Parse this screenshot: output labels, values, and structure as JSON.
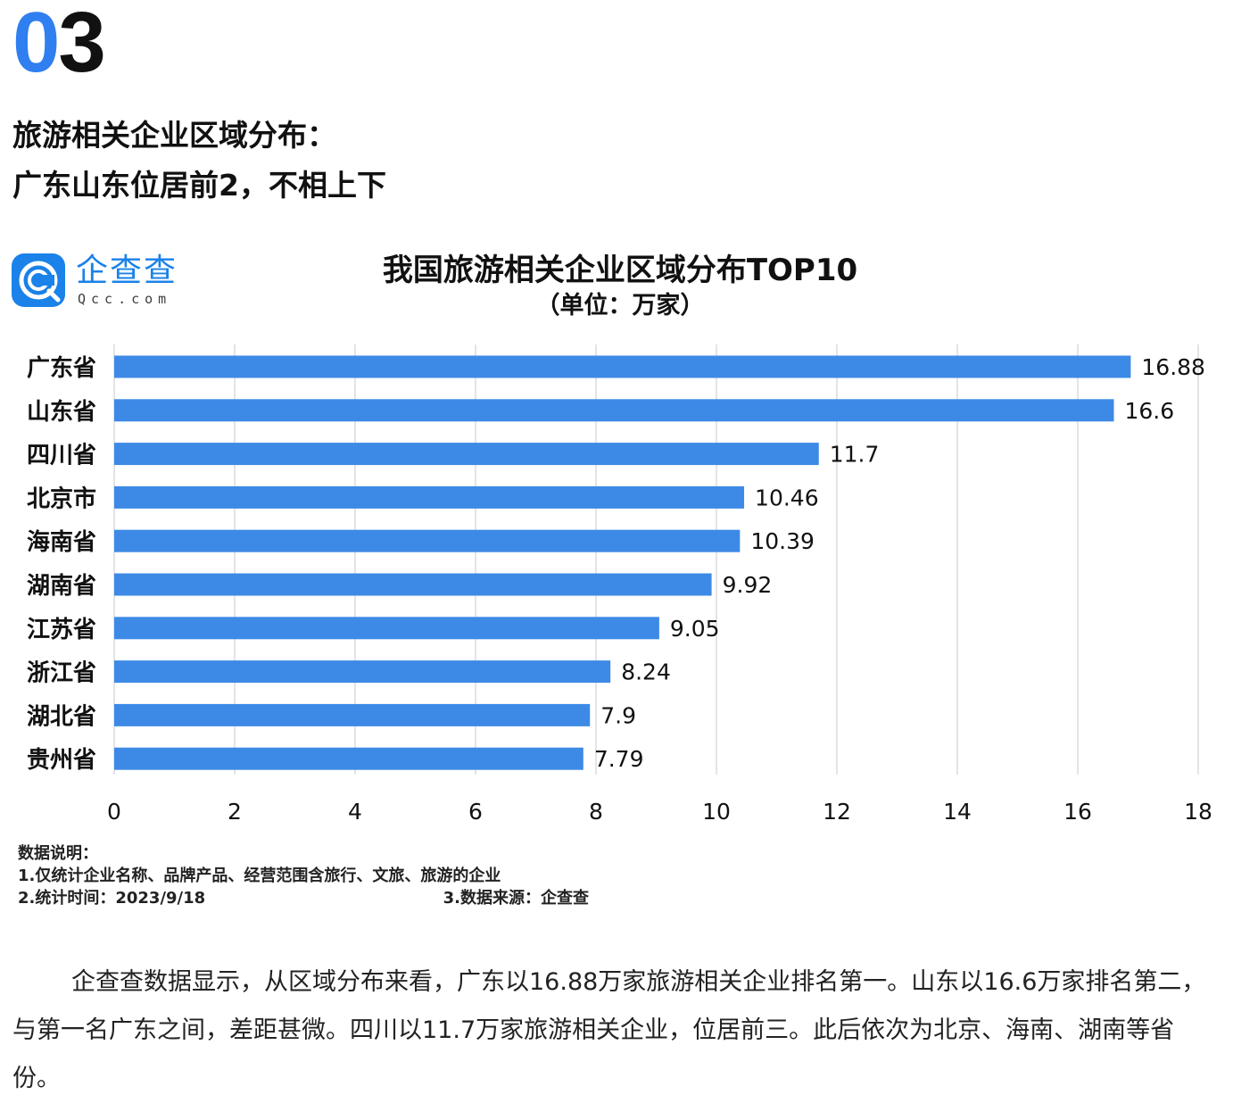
{
  "section_number": {
    "first": "0",
    "second": "3"
  },
  "heading": {
    "line1": "旅游相关企业区域分布：",
    "line2": "广东山东位居前2，不相上下"
  },
  "logo": {
    "cn": "企查查",
    "en": "Qcc.com",
    "brand_color": "#1a82e8"
  },
  "chart_data": {
    "type": "bar",
    "orientation": "horizontal",
    "title": "我国旅游相关企业区域分布TOP10",
    "subtitle": "（单位：万家）",
    "categories": [
      "广东省",
      "山东省",
      "四川省",
      "北京市",
      "海南省",
      "湖南省",
      "江苏省",
      "浙江省",
      "湖北省",
      "贵州省"
    ],
    "values": [
      16.88,
      16.6,
      11.7,
      10.46,
      10.39,
      9.92,
      9.05,
      8.24,
      7.9,
      7.79
    ],
    "value_labels": [
      "16.88",
      "16.6",
      "11.7",
      "10.46",
      "10.39",
      "9.92",
      "9.05",
      "8.24",
      "7.9",
      "7.79"
    ],
    "xlim": [
      0,
      18
    ],
    "xticks": [
      "0",
      "2",
      "4",
      "6",
      "8",
      "10",
      "12",
      "14",
      "16",
      "18"
    ],
    "grid": "vertical",
    "bar_color": "#3d8ae6"
  },
  "notes": {
    "title": "数据说明：",
    "line1": "1.仅统计企业名称、品牌产品、经营范围含旅行、文旅、旅游的企业",
    "line2": "2.统计时间：2023/9/18",
    "source": "3.数据来源：企查查"
  },
  "body_text": "企查查数据显示，从区域分布来看，广东以16.88万家旅游相关企业排名第一。山东以16.6万家排名第二，与第一名广东之间，差距甚微。四川以11.7万家旅游相关企业，位居前三。此后依次为北京、海南、湖南等省份。"
}
